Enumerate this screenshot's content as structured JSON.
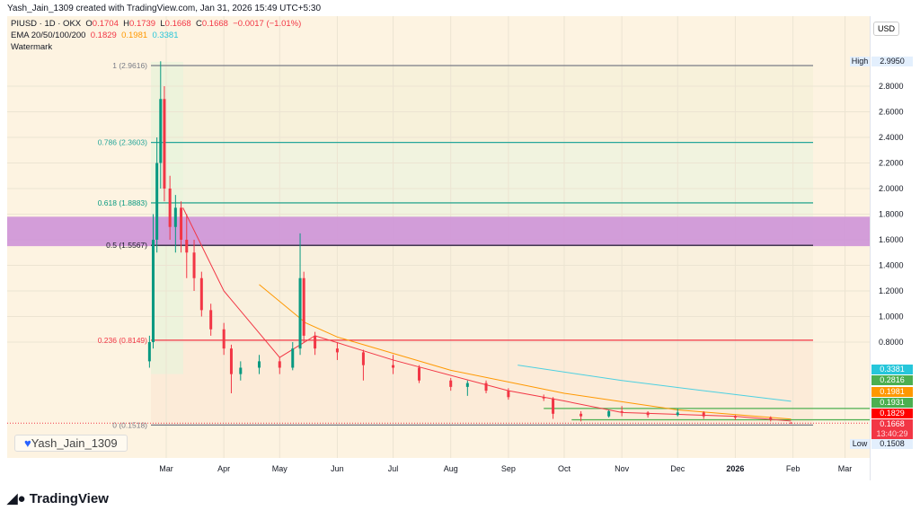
{
  "header": {
    "credit": "Yash_Jain_1309 created with TradingView.com, Jan 31, 2026 15:49 UTC+5:30",
    "symbol": "PIUSD · 1D · OKX",
    "o_label": "O",
    "o": "0.1704",
    "h_label": "H",
    "h": "0.1739",
    "l_label": "L",
    "l": "0.1668",
    "c_label": "C",
    "c": "0.1668",
    "change": "−0.0017 (−1.01%)",
    "ema_label": "EMA 20/50/100/200",
    "ema1": "0.1829",
    "ema2": "0.1981",
    "ema3": "0.3381",
    "watermark_label": "Watermark"
  },
  "currency": "USD",
  "watermark": "Yash_Jain_1309",
  "brand": "TradingView",
  "colors": {
    "up": "#089981",
    "down": "#f23645",
    "ema20": "#f23645",
    "ema50": "#ff9800",
    "ema200": "#4dd0e1",
    "zone": "#ce93d8"
  },
  "chart_data": {
    "type": "candlestick",
    "yaxis": {
      "ticks": [
        "2.8000",
        "2.6000",
        "2.4000",
        "2.2000",
        "2.0000",
        "1.8000",
        "1.6000",
        "1.4000",
        "1.2000",
        "1.0000",
        "0.8000"
      ],
      "range": [
        0.08,
        3.05
      ]
    },
    "xaxis": {
      "ticks": [
        "Mar",
        "Apr",
        "May",
        "Jun",
        "Jul",
        "Aug",
        "Sep",
        "Oct",
        "Nov",
        "Dec",
        "2026",
        "Feb",
        "Mar"
      ],
      "tick_dates": [
        "2025-03-01",
        "2025-04-01",
        "2025-05-01",
        "2025-06-01",
        "2025-07-01",
        "2025-08-01",
        "2025-09-01",
        "2025-10-01",
        "2025-11-01",
        "2025-12-01",
        "2026-01-01",
        "2026-02-01",
        "2026-03-01"
      ]
    },
    "price": [
      [
        "2025-02-20",
        0.65,
        0.85,
        0.6,
        0.8
      ],
      [
        "2025-02-22",
        0.8,
        1.8,
        0.75,
        1.6
      ],
      [
        "2025-02-24",
        1.6,
        2.4,
        1.5,
        2.2
      ],
      [
        "2025-02-26",
        2.2,
        2.995,
        2.0,
        2.7
      ],
      [
        "2025-02-28",
        2.7,
        2.8,
        1.9,
        2.0
      ],
      [
        "2025-03-03",
        2.0,
        2.1,
        1.6,
        1.7
      ],
      [
        "2025-03-06",
        1.7,
        1.95,
        1.5,
        1.85
      ],
      [
        "2025-03-09",
        1.85,
        1.9,
        1.5,
        1.6
      ],
      [
        "2025-03-12",
        1.6,
        1.8,
        1.3,
        1.5
      ],
      [
        "2025-03-16",
        1.5,
        1.6,
        1.2,
        1.3
      ],
      [
        "2025-03-20",
        1.3,
        1.35,
        1.0,
        1.05
      ],
      [
        "2025-03-25",
        1.05,
        1.1,
        0.85,
        0.9
      ],
      [
        "2025-04-01",
        0.9,
        0.95,
        0.7,
        0.75
      ],
      [
        "2025-04-05",
        0.75,
        0.78,
        0.4,
        0.55
      ],
      [
        "2025-04-10",
        0.55,
        0.65,
        0.5,
        0.6
      ],
      [
        "2025-04-20",
        0.6,
        0.7,
        0.55,
        0.65
      ],
      [
        "2025-05-01",
        0.65,
        0.68,
        0.55,
        0.6
      ],
      [
        "2025-05-08",
        0.6,
        0.8,
        0.58,
        0.75
      ],
      [
        "2025-05-12",
        0.75,
        1.65,
        0.7,
        1.3
      ],
      [
        "2025-05-14",
        1.3,
        1.35,
        0.8,
        0.85
      ],
      [
        "2025-05-20",
        0.85,
        0.88,
        0.7,
        0.75
      ],
      [
        "2025-06-01",
        0.75,
        0.8,
        0.66,
        0.72
      ],
      [
        "2025-06-15",
        0.72,
        0.74,
        0.5,
        0.62
      ],
      [
        "2025-07-01",
        0.62,
        0.7,
        0.55,
        0.6
      ],
      [
        "2025-07-15",
        0.6,
        0.62,
        0.48,
        0.5
      ],
      [
        "2025-08-01",
        0.5,
        0.52,
        0.42,
        0.45
      ],
      [
        "2025-08-10",
        0.45,
        0.5,
        0.38,
        0.48
      ],
      [
        "2025-08-20",
        0.48,
        0.5,
        0.4,
        0.42
      ],
      [
        "2025-09-01",
        0.42,
        0.44,
        0.35,
        0.37
      ],
      [
        "2025-09-20",
        0.37,
        0.39,
        0.34,
        0.36
      ],
      [
        "2025-09-25",
        0.36,
        0.37,
        0.2,
        0.24
      ],
      [
        "2025-10-10",
        0.24,
        0.26,
        0.18,
        0.22
      ],
      [
        "2025-10-25",
        0.22,
        0.27,
        0.21,
        0.26
      ],
      [
        "2025-11-01",
        0.26,
        0.3,
        0.22,
        0.25
      ],
      [
        "2025-11-15",
        0.25,
        0.26,
        0.21,
        0.23
      ],
      [
        "2025-12-01",
        0.23,
        0.28,
        0.22,
        0.25
      ],
      [
        "2025-12-15",
        0.25,
        0.26,
        0.2,
        0.22
      ],
      [
        "2026-01-01",
        0.22,
        0.23,
        0.19,
        0.21
      ],
      [
        "2026-01-20",
        0.21,
        0.22,
        0.18,
        0.2
      ],
      [
        "2026-01-31",
        0.1704,
        0.1739,
        0.1668,
        0.1668
      ]
    ],
    "ema20": [
      [
        "2025-03-10",
        1.85
      ],
      [
        "2025-04-01",
        1.2
      ],
      [
        "2025-05-01",
        0.68
      ],
      [
        "2025-05-20",
        0.85
      ],
      [
        "2025-07-01",
        0.66
      ],
      [
        "2025-09-01",
        0.42
      ],
      [
        "2025-10-01",
        0.34
      ],
      [
        "2025-11-01",
        0.25
      ],
      [
        "2026-01-01",
        0.22
      ],
      [
        "2026-01-31",
        0.1829
      ]
    ],
    "ema50": [
      [
        "2025-04-20",
        1.25
      ],
      [
        "2025-05-15",
        0.95
      ],
      [
        "2025-06-01",
        0.84
      ],
      [
        "2025-08-01",
        0.58
      ],
      [
        "2025-10-01",
        0.4
      ],
      [
        "2025-12-01",
        0.27
      ],
      [
        "2026-01-31",
        0.1981
      ]
    ],
    "ema200": [
      [
        "2025-09-06",
        0.62
      ],
      [
        "2025-11-01",
        0.5
      ],
      [
        "2025-12-15",
        0.42
      ],
      [
        "2026-01-31",
        0.3381
      ]
    ],
    "fib": [
      {
        "label": "1 (2.9616)",
        "value": 2.9616,
        "color": "#787b86"
      },
      {
        "label": "0.786 (2.3603)",
        "value": 2.3603,
        "color": "#26a69a"
      },
      {
        "label": "0.618 (1.8883)",
        "value": 1.8883,
        "color": "#089981"
      },
      {
        "label": "0.5 (1.5567)",
        "value": 1.5567,
        "color": "#131722"
      },
      {
        "label": "0.236 (0.8149)",
        "value": 0.8149,
        "color": "#f23645"
      },
      {
        "label": "0 (0.1518)",
        "value": 0.1518,
        "color": "#787b86"
      }
    ],
    "zone": [
      1.55,
      1.78
    ],
    "levels": [
      {
        "value": 0.2816,
        "from": "2025-09-20"
      },
      {
        "value": 0.1931,
        "from": "2025-10-05"
      }
    ],
    "badges": [
      {
        "text": "0.3381",
        "color": "#26c6da"
      },
      {
        "text": "0.2816",
        "color": "#4caf50"
      },
      {
        "text": "0.1981",
        "color": "#ff9800"
      },
      {
        "text": "0.1931",
        "color": "#4caf50"
      },
      {
        "text": "0.1829",
        "color": "#ff0000"
      }
    ],
    "last": {
      "price": "0.1668",
      "countdown": "13:40:29"
    },
    "high": {
      "label": "High",
      "value": "2.9950"
    },
    "low": {
      "label": "Low",
      "value": "0.1508"
    }
  }
}
